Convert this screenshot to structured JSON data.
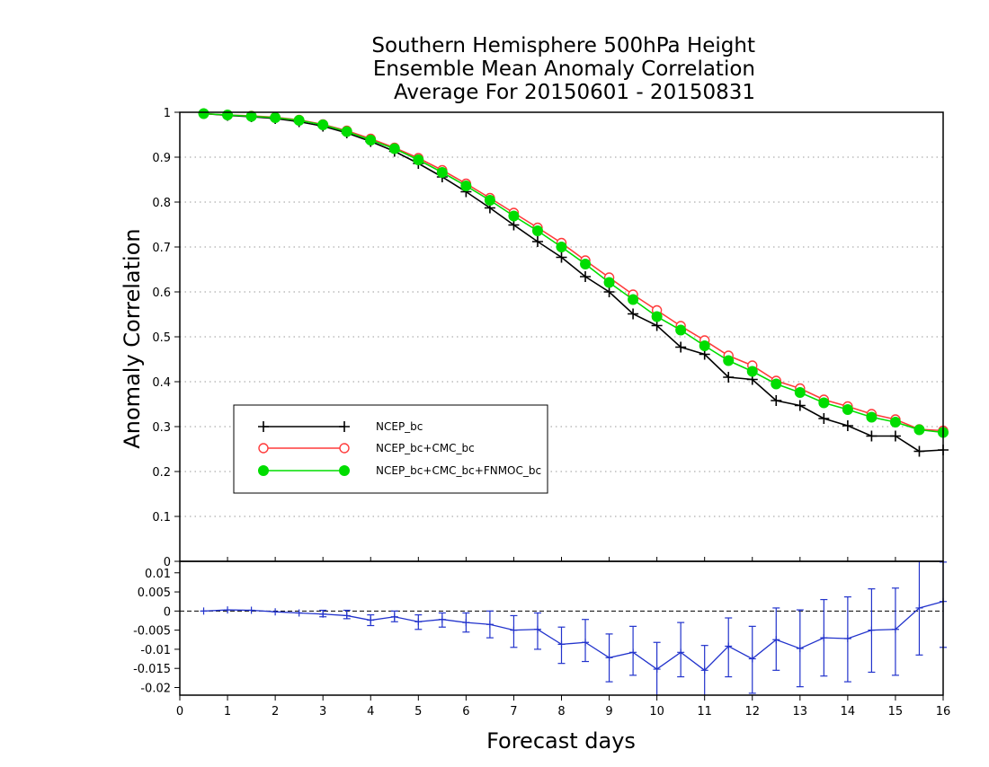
{
  "title_lines": [
    "Southern Hemisphere 500hPa Height",
    "Ensemble Mean Anomaly Correlation",
    "Average For 20150601 - 20150831"
  ],
  "chart_data": [
    {
      "type": "line",
      "title": "Southern Hemisphere 500hPa Height Ensemble Mean Anomaly Correlation Average For 20150601 - 20150831",
      "ylabel": "Anomaly Correlation",
      "xlim": [
        0,
        16
      ],
      "ylim": [
        0,
        1
      ],
      "y_ticks": [
        "0",
        "0.1",
        "0.2",
        "0.3",
        "0.4",
        "0.5",
        "0.6",
        "0.7",
        "0.8",
        "0.9",
        "1"
      ],
      "grid": true,
      "legend_placement": "lower-left",
      "x": [
        0.5,
        1,
        1.5,
        2,
        2.5,
        3,
        3.5,
        4,
        4.5,
        5,
        5.5,
        6,
        6.5,
        7,
        7.5,
        8,
        8.5,
        9,
        9.5,
        10,
        10.5,
        11,
        11.5,
        12,
        12.5,
        13,
        13.5,
        14,
        14.5,
        15,
        15.5,
        16
      ],
      "series": [
        {
          "name": "NCEP_bc",
          "color": "#000000",
          "marker": "plus",
          "values": [
            0.997,
            0.993,
            0.99,
            0.986,
            0.979,
            0.969,
            0.954,
            0.935,
            0.913,
            0.886,
            0.856,
            0.823,
            0.787,
            0.749,
            0.712,
            0.677,
            0.634,
            0.6,
            0.551,
            0.525,
            0.477,
            0.461,
            0.41,
            0.405,
            0.358,
            0.347,
            0.318,
            0.302,
            0.279,
            0.279,
            0.245,
            0.248
          ]
        },
        {
          "name": "NCEP_bc+CMC_bc",
          "color": "#ff3b3b",
          "marker": "open-circle",
          "values": [
            0.997,
            0.994,
            0.992,
            0.989,
            0.983,
            0.973,
            0.959,
            0.941,
            0.921,
            0.898,
            0.871,
            0.841,
            0.809,
            0.776,
            0.743,
            0.709,
            0.67,
            0.632,
            0.594,
            0.559,
            0.524,
            0.492,
            0.458,
            0.436,
            0.402,
            0.385,
            0.36,
            0.345,
            0.328,
            0.316,
            0.294,
            0.291
          ]
        },
        {
          "name": "NCEP_bc+CMC_bc+FNMOC_bc",
          "color": "#00dd00",
          "marker": "filled-circle",
          "values": [
            0.997,
            0.994,
            0.991,
            0.988,
            0.982,
            0.972,
            0.957,
            0.938,
            0.919,
            0.894,
            0.866,
            0.836,
            0.804,
            0.769,
            0.736,
            0.7,
            0.662,
            0.621,
            0.583,
            0.545,
            0.515,
            0.48,
            0.447,
            0.423,
            0.395,
            0.376,
            0.353,
            0.338,
            0.321,
            0.31,
            0.293,
            0.287
          ]
        }
      ]
    },
    {
      "type": "line",
      "xlabel": "Forecast days",
      "xlim": [
        0,
        16
      ],
      "ylim": [
        -0.022,
        0.013
      ],
      "x_ticks": [
        "0",
        "1",
        "2",
        "3",
        "4",
        "5",
        "6",
        "7",
        "8",
        "9",
        "10",
        "11",
        "12",
        "13",
        "14",
        "15",
        "16"
      ],
      "y_ticks": [
        "0.01",
        "0.005",
        "0",
        "-0.005",
        "-0.01",
        "-0.015",
        "-0.02"
      ],
      "series": [
        {
          "color": "#2233cc",
          "marker": "plus",
          "error_bars": true,
          "x": [
            0.5,
            1,
            1.5,
            2,
            2.5,
            3,
            3.5,
            4,
            4.5,
            5,
            5.5,
            6,
            6.5,
            7,
            7.5,
            8,
            8.5,
            9,
            9.5,
            10,
            10.5,
            11,
            11.5,
            12,
            12.5,
            13,
            13.5,
            14,
            14.5,
            15,
            15.5,
            16
          ],
          "values": [
            0,
            0.0003,
            0.0002,
            -0.0002,
            -0.0005,
            -0.0008,
            -0.0012,
            -0.0024,
            -0.0015,
            -0.0028,
            -0.0022,
            -0.003,
            -0.0035,
            -0.005,
            -0.0048,
            -0.0087,
            -0.0082,
            -0.0122,
            -0.0108,
            -0.0152,
            -0.0108,
            -0.0155,
            -0.0092,
            -0.0125,
            -0.0075,
            -0.0098,
            -0.007,
            -0.0072,
            -0.005,
            -0.0048,
            0.0008,
            0.0025
          ],
          "err_low": [
            0,
            0,
            0,
            0,
            0,
            -0.0015,
            -0.002,
            -0.0038,
            -0.0028,
            -0.0048,
            -0.0042,
            -0.0055,
            -0.007,
            -0.0095,
            -0.01,
            -0.0137,
            -0.0132,
            -0.0185,
            -0.0168,
            -0.022,
            -0.0172,
            -0.022,
            -0.0172,
            -0.0215,
            -0.0155,
            -0.0198,
            -0.017,
            -0.0185,
            -0.016,
            -0.0168,
            -0.0115,
            -0.0095
          ],
          "err_high": [
            0,
            0,
            0,
            0,
            0,
            0.0002,
            0.0002,
            -0.001,
            0,
            -0.001,
            -0.0005,
            -0.0005,
            0,
            -0.0012,
            -0.0005,
            -0.0042,
            -0.0022,
            -0.006,
            -0.004,
            -0.0082,
            -0.003,
            -0.009,
            -0.0018,
            -0.004,
            0.0008,
            0.0003,
            0.003,
            0.0037,
            0.0058,
            0.006,
            0.013,
            0.0128
          ]
        }
      ]
    }
  ]
}
